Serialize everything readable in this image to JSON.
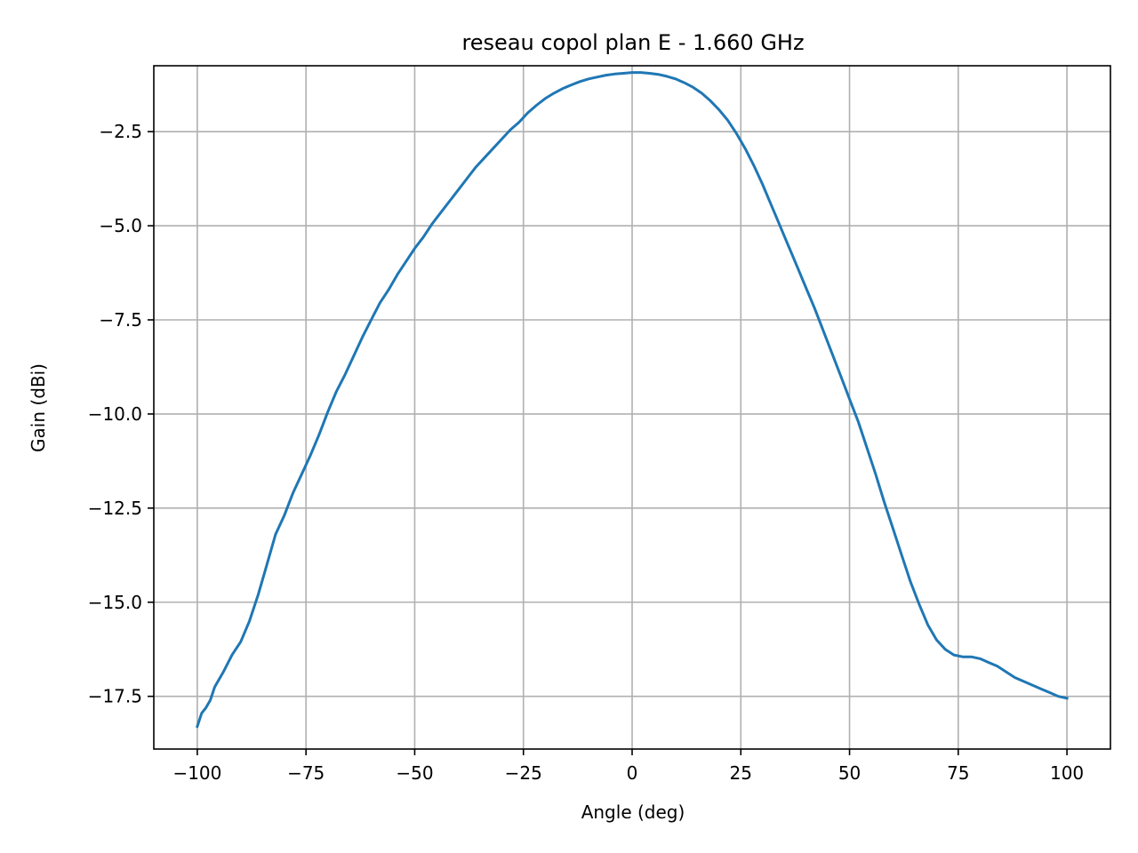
{
  "chart_data": {
    "type": "line",
    "title": "reseau copol plan E - 1.660 GHz",
    "xlabel": "Angle (deg)",
    "ylabel": "Gain (dBi)",
    "xlim": [
      -110,
      110
    ],
    "ylim": [
      -18.9,
      -0.75
    ],
    "grid": true,
    "xticks": [
      -100,
      -75,
      -50,
      -25,
      0,
      25,
      50,
      75,
      100
    ],
    "xtick_labels": [
      "−100",
      "−75",
      "−50",
      "−25",
      "0",
      "25",
      "50",
      "75",
      "100"
    ],
    "yticks": [
      -2.5,
      -5.0,
      -7.5,
      -10.0,
      -12.5,
      -15.0,
      -17.5
    ],
    "ytick_labels": [
      "−2.5",
      "−5.0",
      "−7.5",
      "−10.0",
      "−12.5",
      "−15.0",
      "−17.5"
    ],
    "series": [
      {
        "color": "#1f77b4",
        "x": [
          -100,
          -99,
          -98,
          -97,
          -96,
          -95,
          -94,
          -92,
          -90,
          -88,
          -86,
          -84,
          -82,
          -80,
          -79,
          -78,
          -76,
          -74,
          -72,
          -70,
          -68,
          -66,
          -64,
          -62,
          -60,
          -58,
          -56,
          -54,
          -52,
          -50,
          -48,
          -46,
          -44,
          -42,
          -40,
          -38,
          -36,
          -34,
          -32,
          -30,
          -28,
          -26,
          -24,
          -22,
          -20,
          -18,
          -16,
          -14,
          -12,
          -10,
          -8,
          -6,
          -4,
          -2,
          0,
          2,
          4,
          6,
          8,
          10,
          12,
          14,
          16,
          18,
          20,
          22,
          24,
          26,
          28,
          30,
          32,
          34,
          36,
          38,
          40,
          42,
          44,
          46,
          48,
          50,
          52,
          54,
          56,
          58,
          60,
          62,
          64,
          66,
          68,
          70,
          72,
          74,
          76,
          78,
          80,
          82,
          84,
          86,
          88,
          90,
          92,
          94,
          96,
          98,
          100
        ],
        "y": [
          -18.3,
          -17.95,
          -17.8,
          -17.6,
          -17.25,
          -17.05,
          -16.85,
          -16.4,
          -16.05,
          -15.5,
          -14.8,
          -14.0,
          -13.2,
          -12.7,
          -12.4,
          -12.1,
          -11.6,
          -11.1,
          -10.55,
          -9.95,
          -9.4,
          -8.95,
          -8.45,
          -7.95,
          -7.5,
          -7.05,
          -6.7,
          -6.3,
          -5.95,
          -5.6,
          -5.3,
          -4.95,
          -4.65,
          -4.35,
          -4.05,
          -3.75,
          -3.45,
          -3.2,
          -2.95,
          -2.7,
          -2.45,
          -2.25,
          -2.0,
          -1.8,
          -1.62,
          -1.48,
          -1.36,
          -1.26,
          -1.17,
          -1.1,
          -1.05,
          -1.0,
          -0.97,
          -0.95,
          -0.93,
          -0.93,
          -0.95,
          -0.98,
          -1.03,
          -1.1,
          -1.2,
          -1.32,
          -1.48,
          -1.68,
          -1.92,
          -2.2,
          -2.55,
          -2.95,
          -3.4,
          -3.9,
          -4.45,
          -5.0,
          -5.55,
          -6.1,
          -6.65,
          -7.2,
          -7.8,
          -8.4,
          -9.0,
          -9.6,
          -10.2,
          -10.9,
          -11.6,
          -12.35,
          -13.05,
          -13.75,
          -14.45,
          -15.05,
          -15.6,
          -16.0,
          -16.25,
          -16.4,
          -16.45,
          -16.45,
          -16.5,
          -16.6,
          -16.7,
          -16.85,
          -17.0,
          -17.1,
          -17.2,
          -17.3,
          -17.4,
          -17.5,
          -17.55
        ]
      }
    ]
  }
}
